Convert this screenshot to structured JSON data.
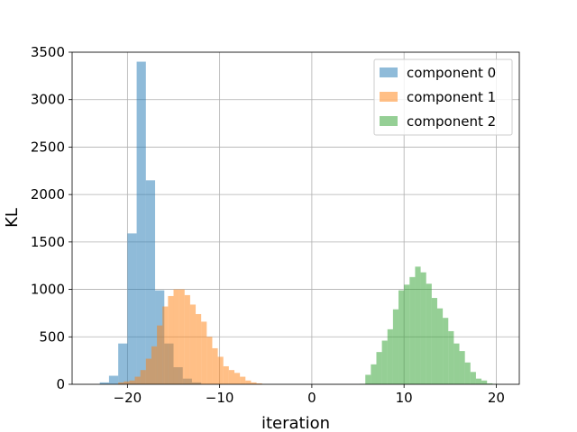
{
  "chart_data": {
    "type": "histogram",
    "title": "",
    "xlabel": "iteration",
    "ylabel": "KL",
    "xlim": [
      -26,
      22.5
    ],
    "ylim": [
      0,
      3500
    ],
    "xticks": [
      -20,
      -10,
      0,
      10,
      20
    ],
    "xtick_labels": [
      "−20",
      "−10",
      "0",
      "10",
      "20"
    ],
    "yticks": [
      0,
      500,
      1000,
      1500,
      2000,
      2500,
      3000,
      3500
    ],
    "ytick_labels": [
      "0",
      "500",
      "1000",
      "1500",
      "2000",
      "2500",
      "3000",
      "3500"
    ],
    "grid": true,
    "legend_position": "top-right",
    "bar_opacity": 0.5,
    "series": [
      {
        "name": "component 0",
        "color": "#1f77b4",
        "bin_edges": [
          -23.0,
          -22.0,
          -21.0,
          -20.0,
          -19.0,
          -18.0,
          -17.0,
          -16.0,
          -15.0,
          -14.0,
          -13.0,
          -12.0
        ],
        "counts": [
          20,
          90,
          430,
          1590,
          3400,
          2150,
          990,
          430,
          180,
          60,
          20
        ]
      },
      {
        "name": "component 1",
        "color": "#ff7f0e",
        "bin_edges": [
          -21.0,
          -20.4,
          -19.8,
          -19.2,
          -18.6,
          -18.0,
          -17.4,
          -16.8,
          -16.2,
          -15.6,
          -15.0,
          -14.4,
          -13.8,
          -13.2,
          -12.6,
          -12.0,
          -11.4,
          -10.8,
          -10.2,
          -9.6,
          -9.0,
          -8.4,
          -7.8,
          -7.2,
          -6.6,
          -6.0,
          -5.4
        ],
        "counts": [
          20,
          30,
          40,
          80,
          150,
          270,
          400,
          620,
          820,
          930,
          1000,
          1000,
          940,
          840,
          740,
          660,
          500,
          380,
          290,
          190,
          150,
          120,
          80,
          40,
          20,
          10
        ]
      },
      {
        "name": "component 2",
        "color": "#2ca02c",
        "bin_edges": [
          5.2,
          5.8,
          6.4,
          7.0,
          7.6,
          8.2,
          8.8,
          9.4,
          10.0,
          10.6,
          11.2,
          11.8,
          12.4,
          13.0,
          13.6,
          14.2,
          14.8,
          15.4,
          16.0,
          16.6,
          17.2,
          17.8,
          18.4,
          19.0,
          19.6,
          20.2
        ],
        "counts": [
          5,
          100,
          210,
          340,
          460,
          580,
          790,
          990,
          1050,
          1130,
          1240,
          1180,
          1060,
          910,
          800,
          700,
          560,
          430,
          350,
          230,
          130,
          60,
          40,
          10,
          5
        ]
      }
    ]
  }
}
